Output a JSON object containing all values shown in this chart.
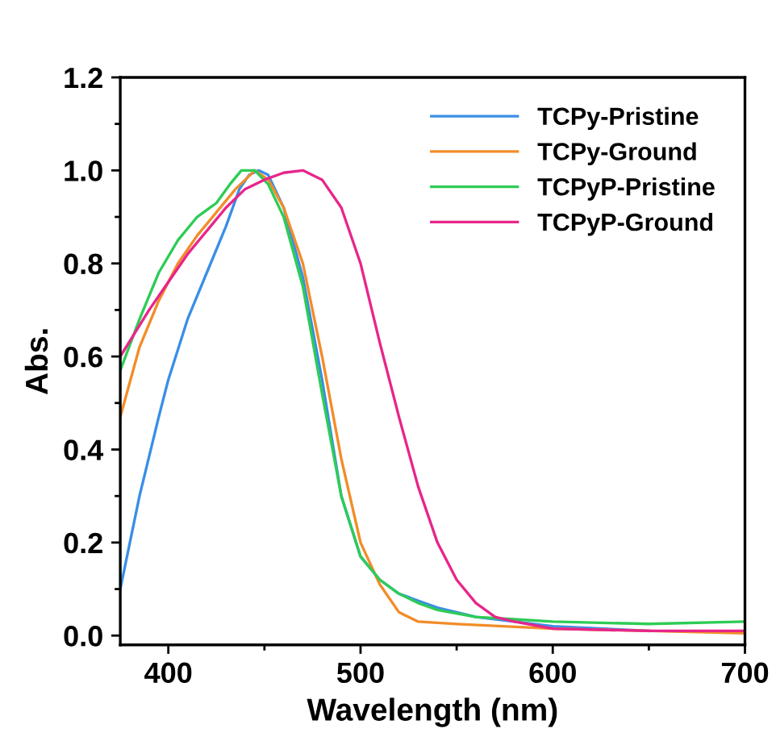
{
  "chart_data": {
    "type": "line",
    "xlabel": "Wavelength (nm)",
    "ylabel": "Abs.",
    "xlim": [
      375,
      700
    ],
    "ylim": [
      -0.02,
      1.2
    ],
    "xticks": [
      400,
      {
        "value": 450,
        "label": null
      },
      500,
      {
        "value": 550,
        "label": null
      },
      600,
      {
        "value": 650,
        "label": null
      },
      700
    ],
    "yticks": [
      {
        "value": 0,
        "label": "0.0"
      },
      {
        "value": 0.1,
        "label": null
      },
      0.2,
      {
        "value": 0.3,
        "label": null
      },
      0.4,
      {
        "value": 0.5,
        "label": null
      },
      0.6,
      {
        "value": 0.7,
        "label": null
      },
      0.8,
      {
        "value": 0.9,
        "label": null
      },
      {
        "value": 1,
        "label": "1.0"
      },
      {
        "value": 1.1,
        "label": null
      },
      1.2
    ],
    "grid": false,
    "legend": "top right",
    "marker": "none",
    "line_style": "solid",
    "series": [
      {
        "name": "TCPy-Pristine",
        "color": "#3a8ee6",
        "x": [
          375,
          385,
          395,
          400,
          410,
          420,
          430,
          437,
          442,
          447,
          452,
          460,
          470,
          480,
          490,
          500,
          510,
          520,
          530,
          540,
          560,
          580,
          600,
          650
        ],
        "values": [
          0.1,
          0.3,
          0.47,
          0.55,
          0.68,
          0.78,
          0.88,
          0.96,
          0.99,
          1.0,
          0.99,
          0.92,
          0.77,
          0.55,
          0.3,
          0.17,
          0.12,
          0.09,
          0.075,
          0.06,
          0.04,
          0.03,
          0.02,
          0.01
        ]
      },
      {
        "name": "TCPy-Ground",
        "color": "#f28c28",
        "x": [
          375,
          385,
          395,
          405,
          415,
          425,
          435,
          445,
          452,
          460,
          470,
          480,
          490,
          500,
          510,
          520,
          530,
          550,
          600,
          650,
          700
        ],
        "values": [
          0.47,
          0.62,
          0.72,
          0.8,
          0.86,
          0.91,
          0.96,
          1.0,
          0.98,
          0.92,
          0.8,
          0.6,
          0.38,
          0.2,
          0.11,
          0.05,
          0.03,
          0.025,
          0.015,
          0.01,
          0.005
        ]
      },
      {
        "name": "TCPyP-Pristine",
        "color": "#2ecc55",
        "x": [
          375,
          385,
          395,
          405,
          415,
          425,
          432,
          438,
          445,
          452,
          460,
          470,
          480,
          490,
          500,
          510,
          520,
          530,
          540,
          560,
          580,
          600,
          650,
          700
        ],
        "values": [
          0.57,
          0.68,
          0.78,
          0.85,
          0.9,
          0.93,
          0.97,
          1.0,
          1.0,
          0.97,
          0.9,
          0.75,
          0.52,
          0.3,
          0.17,
          0.12,
          0.09,
          0.07,
          0.055,
          0.04,
          0.035,
          0.03,
          0.025,
          0.03
        ]
      },
      {
        "name": "TCPyP-Ground",
        "color": "#e8258a",
        "x": [
          375,
          390,
          400,
          410,
          420,
          430,
          440,
          450,
          460,
          470,
          480,
          490,
          500,
          510,
          520,
          530,
          540,
          550,
          560,
          570,
          580,
          600,
          650,
          700
        ],
        "values": [
          0.6,
          0.7,
          0.76,
          0.82,
          0.87,
          0.92,
          0.96,
          0.98,
          0.995,
          1.0,
          0.98,
          0.92,
          0.8,
          0.63,
          0.47,
          0.32,
          0.2,
          0.12,
          0.07,
          0.04,
          0.03,
          0.015,
          0.01,
          0.01
        ]
      }
    ]
  }
}
